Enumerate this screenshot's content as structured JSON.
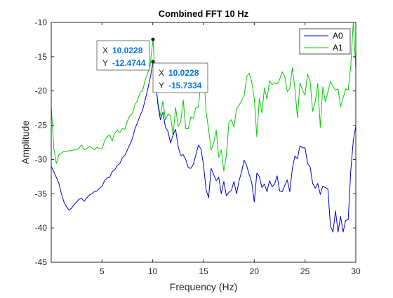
{
  "chart_data": {
    "type": "line",
    "title": "Combined FFT 10 Hz",
    "xlabel": "Frequency (Hz)",
    "ylabel": "Amplitude",
    "xlim": [
      0,
      30
    ],
    "ylim": [
      -45,
      -10
    ],
    "xticks": [
      5,
      10,
      15,
      20,
      25,
      30
    ],
    "yticks": [
      -45,
      -40,
      -35,
      -30,
      -25,
      -20,
      -15,
      -10
    ],
    "grid": false,
    "legend_position": "top-right",
    "series": [
      {
        "name": "A0",
        "color": "#0000cc",
        "x": [
          0.0,
          0.25,
          0.5,
          0.75,
          1.0,
          1.25,
          1.5,
          1.75,
          2.0,
          2.25,
          2.5,
          2.75,
          3.0,
          3.25,
          3.5,
          3.75,
          4.0,
          4.25,
          4.5,
          4.75,
          5.0,
          5.25,
          5.5,
          5.75,
          6.0,
          6.25,
          6.5,
          6.75,
          7.0,
          7.25,
          7.5,
          7.75,
          8.0,
          8.25,
          8.5,
          8.75,
          9.0,
          9.25,
          9.5,
          9.75,
          10.0228,
          10.25,
          10.5,
          10.75,
          11.0,
          11.25,
          11.5,
          11.75,
          12.0,
          12.25,
          12.5,
          12.75,
          13.0,
          13.25,
          13.5,
          13.75,
          14.0,
          14.25,
          14.5,
          14.75,
          15.0,
          15.25,
          15.5,
          15.75,
          16.0,
          16.25,
          16.5,
          16.75,
          17.0,
          17.25,
          17.5,
          17.75,
          18.0,
          18.25,
          18.5,
          18.75,
          19.0,
          19.25,
          19.5,
          19.75,
          20.0,
          20.25,
          20.5,
          20.75,
          21.0,
          21.25,
          21.5,
          21.75,
          22.0,
          22.25,
          22.5,
          22.75,
          23.0,
          23.25,
          23.5,
          23.75,
          24.0,
          24.25,
          24.5,
          24.75,
          25.0,
          25.25,
          25.5,
          25.75,
          26.0,
          26.25,
          26.5,
          26.75,
          27.0,
          27.25,
          27.5,
          27.75,
          28.0,
          28.25,
          28.5,
          28.75,
          29.0,
          29.25,
          29.5,
          29.75,
          30.0
        ],
        "y": [
          -31.0,
          -31.8,
          -32.6,
          -33.5,
          -35.0,
          -36.2,
          -36.9,
          -37.4,
          -37.1,
          -36.6,
          -36.2,
          -35.8,
          -35.7,
          -36.1,
          -35.6,
          -35.2,
          -35.0,
          -34.7,
          -34.6,
          -34.2,
          -33.9,
          -33.1,
          -32.7,
          -32.6,
          -31.8,
          -31.5,
          -30.9,
          -30.6,
          -29.8,
          -29.4,
          -28.6,
          -27.8,
          -26.9,
          -25.5,
          -24.6,
          -23.6,
          -22.8,
          -21.3,
          -19.8,
          -18.1,
          -15.7334,
          -18.0,
          -21.9,
          -24.2,
          -23.1,
          -25.3,
          -25.9,
          -27.6,
          -26.4,
          -25.6,
          -28.1,
          -29.4,
          -29.3,
          -30.0,
          -31.2,
          -31.3,
          -30.7,
          -29.3,
          -27.9,
          -28.5,
          -30.8,
          -34.4,
          -35.6,
          -31.3,
          -32.2,
          -33.1,
          -32.6,
          -35.0,
          -33.2,
          -35.3,
          -34.8,
          -34.5,
          -33.2,
          -35.0,
          -33.1,
          -31.8,
          -30.1,
          -30.9,
          -32.2,
          -33.4,
          -36.2,
          -32.0,
          -32.5,
          -34.1,
          -33.6,
          -34.7,
          -33.1,
          -34.0,
          -33.6,
          -32.4,
          -34.6,
          -34.7,
          -33.8,
          -33.0,
          -34.7,
          -31.3,
          -29.5,
          -29.9,
          -28.0,
          -28.3,
          -28.3,
          -30.6,
          -31.1,
          -33.5,
          -34.2,
          -33.5,
          -35.1,
          -33.9,
          -34.1,
          -34.3,
          -39.7,
          -40.6,
          -37.5,
          -40.6,
          -38.3,
          -40.6,
          -38.9,
          -38.8,
          -31.7,
          -27.3,
          -25.1
        ]
      },
      {
        "name": "A1",
        "color": "#00cc00",
        "x": [
          0.0,
          0.25,
          0.5,
          0.75,
          1.0,
          1.25,
          1.5,
          1.75,
          2.0,
          2.25,
          2.5,
          2.75,
          3.0,
          3.25,
          3.5,
          3.75,
          4.0,
          4.25,
          4.5,
          4.75,
          5.0,
          5.25,
          5.5,
          5.75,
          6.0,
          6.25,
          6.5,
          6.75,
          7.0,
          7.25,
          7.5,
          7.75,
          8.0,
          8.25,
          8.5,
          8.75,
          9.0,
          9.25,
          9.5,
          9.75,
          10.0228,
          10.25,
          10.5,
          10.75,
          11.0,
          11.25,
          11.5,
          11.75,
          12.0,
          12.25,
          12.5,
          12.75,
          13.0,
          13.25,
          13.5,
          13.75,
          14.0,
          14.25,
          14.5,
          14.75,
          15.0,
          15.25,
          15.5,
          15.75,
          16.0,
          16.25,
          16.5,
          16.75,
          17.0,
          17.25,
          17.5,
          17.75,
          18.0,
          18.25,
          18.5,
          18.75,
          19.0,
          19.25,
          19.5,
          19.75,
          20.0,
          20.25,
          20.5,
          20.75,
          21.0,
          21.25,
          21.5,
          21.75,
          22.0,
          22.25,
          22.5,
          22.75,
          23.0,
          23.25,
          23.5,
          23.75,
          24.0,
          24.25,
          24.5,
          24.75,
          25.0,
          25.25,
          25.5,
          25.75,
          26.0,
          26.25,
          26.5,
          26.75,
          27.0,
          27.25,
          27.5,
          27.75,
          28.0,
          28.25,
          28.5,
          28.75,
          29.0,
          29.25,
          29.5,
          29.75,
          30.0
        ],
        "y": [
          -22.3,
          -28.3,
          -30.6,
          -29.3,
          -29.1,
          -28.8,
          -28.9,
          -28.7,
          -28.7,
          -28.6,
          -28.6,
          -28.3,
          -27.9,
          -28.6,
          -28.4,
          -28.1,
          -28.3,
          -28.6,
          -28.2,
          -28.4,
          -28.5,
          -27.3,
          -26.7,
          -26.4,
          -27.3,
          -26.2,
          -25.7,
          -26.1,
          -25.5,
          -25.6,
          -24.4,
          -23.6,
          -23.3,
          -22.0,
          -21.4,
          -20.2,
          -20.0,
          -18.4,
          -17.5,
          -16.2,
          -12.4744,
          -18.7,
          -21.6,
          -23.6,
          -21.5,
          -24.2,
          -23.4,
          -23.6,
          -26.5,
          -22.4,
          -25.2,
          -24.5,
          -21.3,
          -25.5,
          -25.5,
          -23.8,
          -24.0,
          -22.4,
          -22.4,
          -18.2,
          -16.5,
          -23.0,
          -25.6,
          -28.6,
          -27.6,
          -25.7,
          -29.7,
          -28.6,
          -31.7,
          -29.4,
          -24.6,
          -24.2,
          -25.3,
          -22.6,
          -22.1,
          -21.4,
          -20.7,
          -17.9,
          -17.4,
          -18.7,
          -21.1,
          -26.7,
          -21.1,
          -23.2,
          -19.6,
          -21.2,
          -18.5,
          -19.1,
          -18.8,
          -19.0,
          -18.3,
          -17.2,
          -17.9,
          -20.1,
          -19.6,
          -16.6,
          -19.6,
          -23.9,
          -18.8,
          -19.9,
          -20.6,
          -17.5,
          -18.6,
          -23.0,
          -21.6,
          -18.9,
          -25.3,
          -19.4,
          -21.6,
          -20.2,
          -18.6,
          -19.3,
          -19.9,
          -19.7,
          -22.3,
          -21.0,
          -19.7,
          -19.9,
          -16.4,
          -9.8,
          -16.9
        ]
      }
    ],
    "datatips": [
      {
        "series": "A1",
        "x_label": "X",
        "y_label": "Y",
        "x_text": "10.0228",
        "y_text": "-12.4744",
        "x": 10.0228,
        "y": -12.4744
      },
      {
        "series": "A0",
        "x_label": "X",
        "y_label": "Y",
        "x_text": "10.0228",
        "y_text": "-15.7334",
        "x": 10.0228,
        "y": -15.7334
      }
    ]
  }
}
